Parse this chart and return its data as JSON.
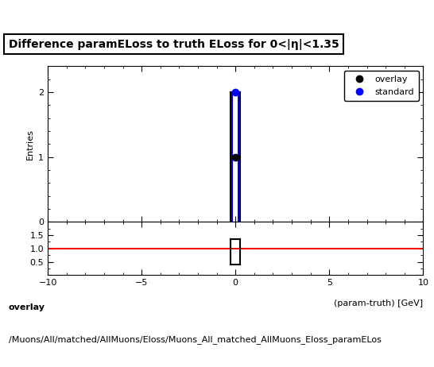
{
  "title": "Difference paramELoss to truth ELoss for 0<|η|<1.35",
  "xlabel": "(param-truth) [GeV]",
  "ylabel": "Entries",
  "xlim": [
    -10,
    10
  ],
  "ylim_main": [
    0,
    2.4
  ],
  "ylim_ratio": [
    0,
    2.0
  ],
  "overlay_color": "#000000",
  "standard_color": "#0000ff",
  "ratio_line_color": "#ff0000",
  "ratio_line_y": 1.0,
  "ratio_yticks": [
    0.5,
    1.0,
    1.5
  ],
  "main_yticks": [
    0,
    1,
    2
  ],
  "xticks": [
    -10,
    -5,
    0,
    5,
    10
  ],
  "legend_labels": [
    "overlay",
    "standard"
  ],
  "footer_text1": "overlay",
  "footer_text2": "/Muons/All/matched/AllMuons/Eloss/Muons_All_matched_AllMuons_Eloss_paramELos",
  "title_fontsize": 10,
  "axis_fontsize": 8,
  "tick_fontsize": 8,
  "legend_fontsize": 8,
  "footer_fontsize": 8,
  "background_color": "#ffffff"
}
